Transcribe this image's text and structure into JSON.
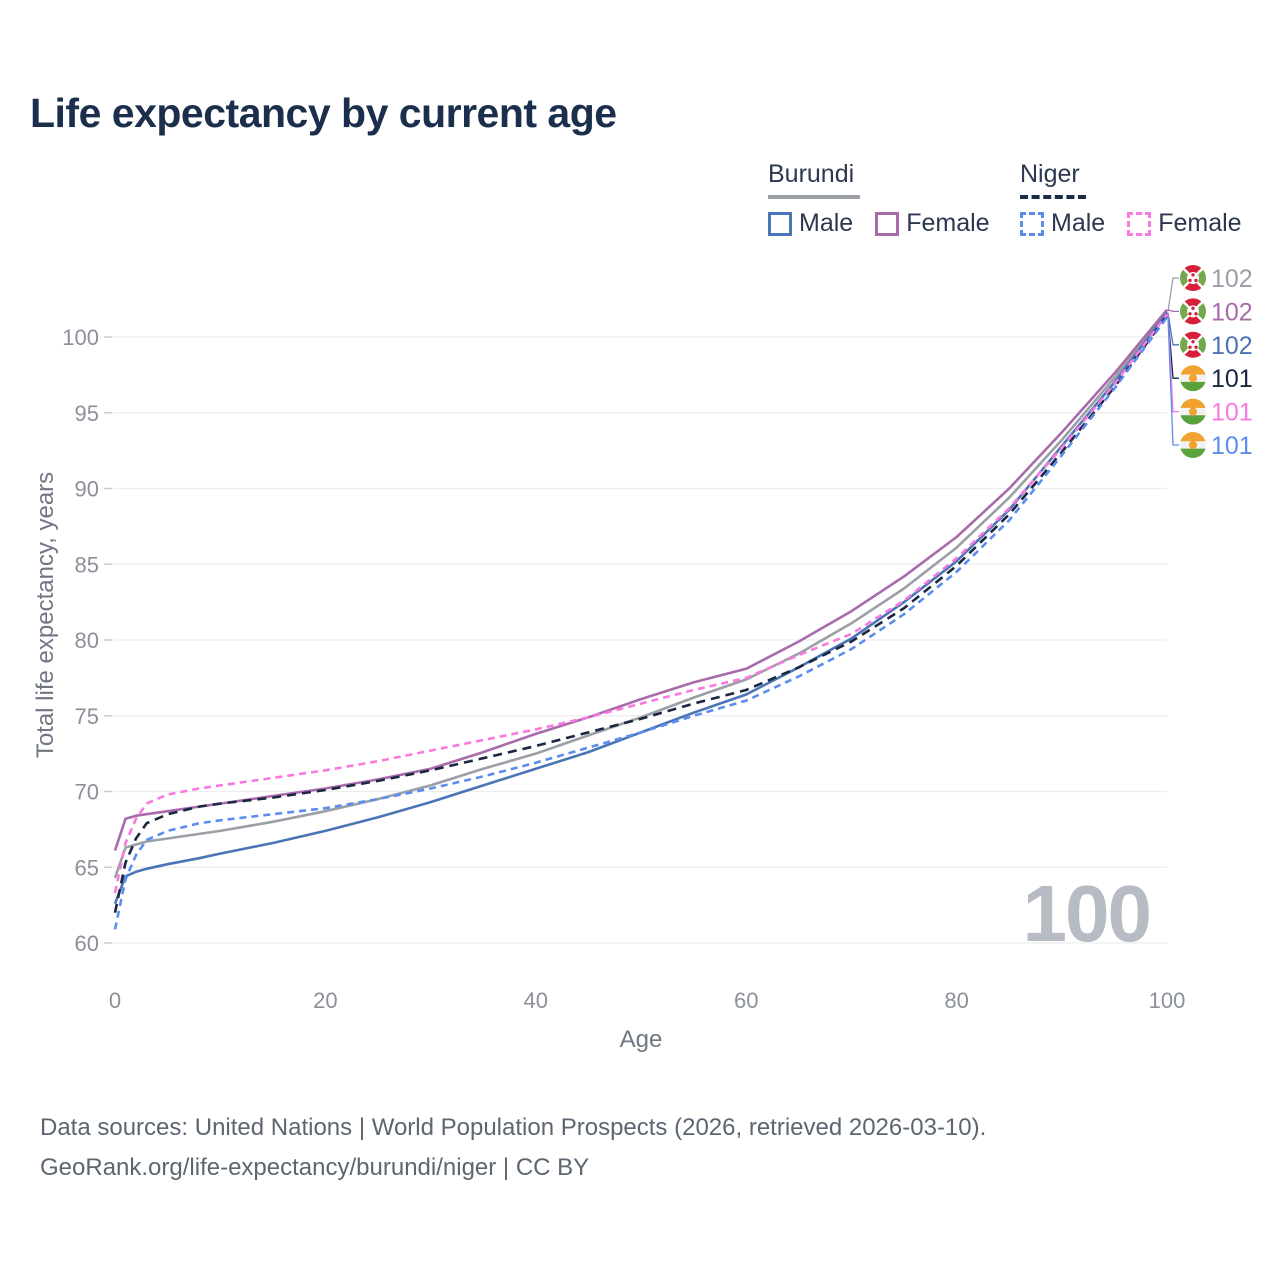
{
  "title": "Life expectancy by current age",
  "legend": {
    "groups": [
      {
        "label": "Burundi",
        "line_style": "solid",
        "underline_color": "#9aa0a6",
        "items": [
          {
            "label": "Male",
            "color": "#4a75b5"
          },
          {
            "label": "Female",
            "color": "#a96bab"
          }
        ]
      },
      {
        "label": "Niger",
        "line_style": "dashed",
        "underline_color": "#1b2b49",
        "items": [
          {
            "label": "Male",
            "color": "#5b8def"
          },
          {
            "label": "Female",
            "color": "#f879e0"
          }
        ]
      }
    ]
  },
  "axes": {
    "x": {
      "label": "Age",
      "ticks": [
        0,
        20,
        40,
        60,
        80,
        100
      ]
    },
    "y": {
      "label": "Total life expectancy, years",
      "ticks": [
        60,
        65,
        70,
        75,
        80,
        85,
        90,
        95,
        100
      ]
    }
  },
  "watermark": "100",
  "footer": {
    "line1": "Data sources: United Nations | World Population Prospects (2026, retrieved 2026-03-10).",
    "line2": "GeoRank.org/life-expectancy/burundi/niger | CC BY"
  },
  "chart_data": {
    "type": "line",
    "title": "Life expectancy by current age",
    "xlabel": "Age",
    "ylabel": "Total life expectancy, years",
    "xlim": [
      0,
      100
    ],
    "ylim": [
      60,
      103
    ],
    "grid": "horizontal",
    "legend_position": "top-right",
    "x": [
      0,
      1,
      2,
      3,
      5,
      8,
      10,
      15,
      20,
      25,
      30,
      35,
      40,
      45,
      50,
      55,
      60,
      65,
      70,
      75,
      80,
      85,
      90,
      95,
      100
    ],
    "series": [
      {
        "id": "burundi-total",
        "name": "Burundi",
        "country": "Burundi",
        "sex": "Both",
        "color": "#9aa0a6",
        "dash": "",
        "end_label": "102",
        "label_row": 0,
        "values": [
          64.3,
          66.3,
          66.5,
          66.7,
          66.9,
          67.2,
          67.4,
          68.0,
          68.7,
          69.5,
          70.4,
          71.5,
          72.5,
          73.7,
          74.9,
          76.2,
          77.4,
          79.1,
          81.1,
          83.4,
          86.1,
          89.4,
          93.2,
          97.3,
          101.7
        ]
      },
      {
        "id": "burundi-female",
        "name": "Burundi Female",
        "country": "Burundi",
        "sex": "Female",
        "color": "#a96bab",
        "dash": "",
        "end_label": "102",
        "label_row": 1,
        "values": [
          66.1,
          68.2,
          68.4,
          68.5,
          68.7,
          69.0,
          69.2,
          69.7,
          70.2,
          70.8,
          71.5,
          72.6,
          73.8,
          74.9,
          76.1,
          77.2,
          78.1,
          79.9,
          81.9,
          84.2,
          86.8,
          90.0,
          93.7,
          97.6,
          101.8
        ]
      },
      {
        "id": "burundi-male",
        "name": "Burundi Male",
        "country": "Burundi",
        "sex": "Male",
        "color": "#4a75b5",
        "dash": "",
        "end_label": "102",
        "label_row": 2,
        "values": [
          62.6,
          64.4,
          64.7,
          64.9,
          65.2,
          65.6,
          65.9,
          66.6,
          67.4,
          68.3,
          69.3,
          70.4,
          71.5,
          72.6,
          73.9,
          75.2,
          76.4,
          78.2,
          80.1,
          82.5,
          85.2,
          88.6,
          92.8,
          97.0,
          101.6
        ]
      },
      {
        "id": "niger-total",
        "name": "Niger",
        "country": "Niger",
        "sex": "Both",
        "color": "#1b2740",
        "dash": "9 6",
        "end_label": "101",
        "label_row": 3,
        "values": [
          62.0,
          65.3,
          66.9,
          67.9,
          68.5,
          69.0,
          69.2,
          69.6,
          70.1,
          70.7,
          71.4,
          72.2,
          73.0,
          73.9,
          74.8,
          75.8,
          76.7,
          78.2,
          79.9,
          82.1,
          84.9,
          88.3,
          92.4,
          96.7,
          101.4
        ]
      },
      {
        "id": "niger-female",
        "name": "Niger Female",
        "country": "Niger",
        "sex": "Female",
        "color": "#f879e0",
        "dash": "7 5",
        "end_label": "101",
        "label_row": 4,
        "values": [
          63.3,
          66.6,
          68.2,
          69.2,
          69.8,
          70.2,
          70.4,
          70.9,
          71.4,
          72.0,
          72.7,
          73.4,
          74.1,
          74.9,
          75.8,
          76.7,
          77.5,
          79.0,
          80.4,
          82.6,
          85.4,
          88.7,
          92.7,
          96.9,
          101.5
        ]
      },
      {
        "id": "niger-male",
        "name": "Niger Male",
        "country": "Niger",
        "sex": "Male",
        "color": "#5b8def",
        "dash": "7 5",
        "end_label": "101",
        "label_row": 5,
        "values": [
          60.9,
          64.2,
          65.8,
          66.8,
          67.4,
          67.9,
          68.1,
          68.5,
          68.9,
          69.5,
          70.2,
          71.0,
          71.9,
          72.9,
          73.9,
          75.0,
          76.0,
          77.6,
          79.4,
          81.7,
          84.5,
          87.9,
          92.2,
          96.6,
          101.3
        ]
      }
    ]
  }
}
